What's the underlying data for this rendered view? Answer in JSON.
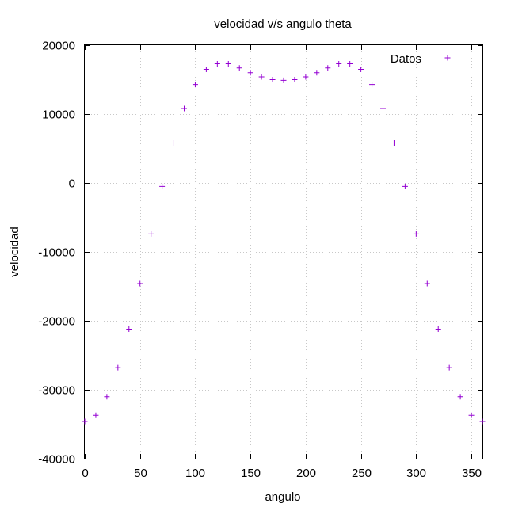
{
  "chart_data": {
    "type": "scatter",
    "title": "velocidad v/s angulo theta",
    "xlabel": "angulo",
    "ylabel": "velocidad",
    "xlim": [
      0,
      360
    ],
    "ylim": [
      -40000,
      20000
    ],
    "xticks": [
      "0",
      "50",
      "100",
      "150",
      "200",
      "250",
      "300",
      "350"
    ],
    "yticks": [
      "-40000",
      "-30000",
      "-20000",
      "-10000",
      "0",
      "10000",
      "20000"
    ],
    "grid": true,
    "legend_position": "top-right",
    "marker": "plus",
    "series": [
      {
        "name": "Datos",
        "color": "#9400d3",
        "x": [
          0,
          10,
          20,
          30,
          40,
          50,
          60,
          70,
          80,
          90,
          100,
          110,
          120,
          130,
          140,
          150,
          160,
          170,
          180,
          190,
          200,
          210,
          220,
          230,
          240,
          250,
          260,
          270,
          280,
          290,
          300,
          310,
          320,
          330,
          340,
          350,
          360
        ],
        "y": [
          -34600,
          -33700,
          -31000,
          -26800,
          -21200,
          -14600,
          -7400,
          -500,
          5800,
          10800,
          14300,
          16500,
          17300,
          17300,
          16700,
          16000,
          15400,
          15000,
          14900,
          15000,
          15400,
          16000,
          16700,
          17300,
          17300,
          16500,
          14300,
          10800,
          5800,
          -500,
          -7400,
          -14600,
          -21200,
          -26800,
          -31000,
          -33700,
          -34600
        ]
      }
    ]
  }
}
